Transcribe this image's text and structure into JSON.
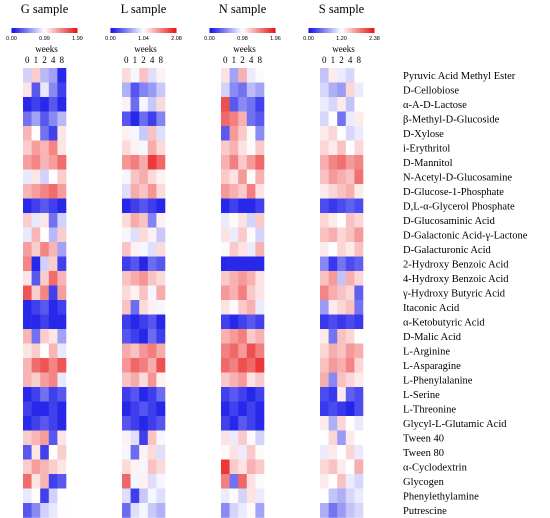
{
  "chart_data": {
    "type": "heatmap",
    "xlabel": "weeks",
    "weeks": [
      "0",
      "1",
      "2",
      "4",
      "8"
    ],
    "colors": {
      "low": "#1010e8",
      "mid": "#ffffff",
      "high": "#e81010"
    },
    "substrates": [
      "Pyruvic Acid Methyl Ester",
      "D-Cellobiose",
      "α-A-D-Lactose",
      "β-Methyl-D-Glucoside",
      "D-Xylose",
      "i-Erythritol",
      "D-Mannitol",
      "N-Acetyl-D-Glucosamine",
      "D-Glucose-1-Phosphate",
      "D,L-α-Glycerol Phosphate",
      "D-Glucosaminic Acid",
      "D-Galactonic Acid-γ-Lactone",
      "D-Galacturonic Acid",
      "2-Hydroxy Benzoic Acid",
      "4-Hydroxy Benzoic Acid",
      "γ-Hydroxy Butyric Acid",
      "Itaconic Acid",
      "α-Ketobutyric Acid",
      "D-Malic Acid",
      "L-Arginine",
      "L-Asparagine",
      "L-Phenylalanine",
      "L-Serine",
      "L-Threonine",
      "Glycyl-L-Glutamic Acid",
      "Tween 40",
      "Tween 80",
      "α-Cyclodextrin",
      "Glycogen",
      "Phenylethylamine",
      "Putrescine"
    ],
    "panels": [
      {
        "title": "G sample",
        "scale": [
          0.0,
          0.99,
          1.99
        ],
        "scale_labels": [
          "0.00",
          "0.99",
          "1.99"
        ],
        "values": [
          [
            0.8,
            1.2,
            0.7,
            0.6,
            0.1
          ],
          [
            1.1,
            0.3,
            0.9,
            0.5,
            0.2
          ],
          [
            0.1,
            0.2,
            0.1,
            0.3,
            0.1
          ],
          [
            0.4,
            0.6,
            0.3,
            0.5,
            0.7
          ],
          [
            1.3,
            1.0,
            0.4,
            0.2,
            1.1
          ],
          [
            1.2,
            1.4,
            1.3,
            1.5,
            1.1
          ],
          [
            1.4,
            1.5,
            1.3,
            1.4,
            1.6
          ],
          [
            0.9,
            1.1,
            0.8,
            1.0,
            1.2
          ],
          [
            1.3,
            1.4,
            1.5,
            1.6,
            1.4
          ],
          [
            0.1,
            0.2,
            0.3,
            0.2,
            0.1
          ],
          [
            1.2,
            0.9,
            1.1,
            0.4,
            0.8
          ],
          [
            0.9,
            1.3,
            1.0,
            0.7,
            1.2
          ],
          [
            1.4,
            1.2,
            1.5,
            1.3,
            0.6
          ],
          [
            1.5,
            0.1,
            0.8,
            1.2,
            0.2
          ],
          [
            1.1,
            0.3,
            1.2,
            1.6,
            1.3
          ],
          [
            1.7,
            1.2,
            1.5,
            0.2,
            1.4
          ],
          [
            0.1,
            0.2,
            0.3,
            0.1,
            0.2
          ],
          [
            0.1,
            0.1,
            0.2,
            0.1,
            0.1
          ],
          [
            1.3,
            0.4,
            1.2,
            1.1,
            0.6
          ],
          [
            1.1,
            1.2,
            1.0,
            1.3,
            0.9
          ],
          [
            1.3,
            1.6,
            1.7,
            1.5,
            1.7
          ],
          [
            1.3,
            1.2,
            1.4,
            1.5,
            0.9
          ],
          [
            0.1,
            0.2,
            0.4,
            0.2,
            0.3
          ],
          [
            0.2,
            0.1,
            0.1,
            0.2,
            0.1
          ],
          [
            0.1,
            0.2,
            0.3,
            0.2,
            0.1
          ],
          [
            1.2,
            1.3,
            1.4,
            0.3,
            1.1
          ],
          [
            0.3,
            1.1,
            0.2,
            1.0,
            1.2
          ],
          [
            1.2,
            1.4,
            1.3,
            1.2,
            1.1
          ],
          [
            1.6,
            1.1,
            1.3,
            0.2,
            0.3
          ],
          [
            0.9,
            1.0,
            0.2,
            0.8,
            1.0
          ],
          [
            0.3,
            0.5,
            0.8,
            0.9,
            1.0
          ]
        ]
      },
      {
        "title": "L sample",
        "scale": [
          0.0,
          1.04,
          2.08
        ],
        "scale_labels": [
          "0.00",
          "1.04",
          "2.08"
        ],
        "values": [
          [
            1.2,
            1.0,
            1.3,
            0.9,
            1.1
          ],
          [
            0.7,
            0.3,
            0.5,
            0.6,
            0.8
          ],
          [
            1.1,
            0.4,
            1.0,
            0.8,
            1.2
          ],
          [
            0.3,
            0.1,
            0.4,
            0.2,
            0.5
          ],
          [
            1.1,
            1.0,
            0.8,
            1.3,
            0.9
          ],
          [
            1.2,
            1.1,
            1.0,
            1.4,
            1.2
          ],
          [
            1.5,
            1.6,
            1.4,
            1.9,
            1.7
          ],
          [
            1.0,
            1.3,
            1.4,
            1.2,
            1.1
          ],
          [
            0.9,
            1.4,
            1.3,
            1.5,
            1.2
          ],
          [
            0.1,
            0.2,
            0.3,
            0.2,
            0.1
          ],
          [
            1.2,
            1.4,
            1.3,
            0.5,
            1.1
          ],
          [
            1.0,
            0.9,
            1.2,
            1.1,
            0.8
          ],
          [
            1.3,
            1.1,
            1.0,
            0.9,
            1.2
          ],
          [
            0.2,
            0.3,
            0.1,
            0.4,
            0.3
          ],
          [
            1.3,
            1.4,
            1.5,
            1.3,
            1.2
          ],
          [
            1.2,
            1.1,
            1.3,
            1.0,
            1.4
          ],
          [
            1.3,
            0.4,
            1.2,
            1.1,
            1.0
          ],
          [
            0.2,
            0.1,
            0.2,
            0.3,
            0.1
          ],
          [
            0.3,
            0.2,
            0.1,
            0.4,
            0.2
          ],
          [
            1.4,
            1.3,
            1.5,
            1.6,
            1.4
          ],
          [
            1.5,
            1.7,
            1.6,
            1.4,
            1.8
          ],
          [
            1.3,
            1.4,
            1.2,
            1.5,
            1.1
          ],
          [
            0.2,
            0.3,
            0.1,
            0.2,
            0.4
          ],
          [
            0.1,
            0.2,
            0.3,
            0.2,
            0.1
          ],
          [
            0.3,
            0.2,
            0.1,
            0.2,
            0.3
          ],
          [
            1.1,
            0.9,
            0.2,
            1.3,
            1.0
          ],
          [
            1.0,
            0.4,
            1.1,
            1.2,
            0.9
          ],
          [
            1.2,
            1.1,
            1.0,
            1.3,
            1.2
          ],
          [
            1.7,
            1.0,
            1.1,
            0.9,
            1.0
          ],
          [
            0.9,
            0.2,
            0.8,
            1.0,
            0.9
          ],
          [
            0.4,
            0.9,
            1.0,
            0.8,
            0.7
          ]
        ]
      },
      {
        "title": "N sample",
        "scale": [
          0.0,
          0.98,
          1.96
        ],
        "scale_labels": [
          "0.00",
          "0.98",
          "1.96"
        ],
        "values": [
          [
            1.1,
            0.6,
            1.3,
            0.9,
            1.0
          ],
          [
            0.8,
            0.5,
            0.4,
            0.7,
            0.6
          ],
          [
            1.7,
            0.3,
            0.5,
            0.4,
            0.2
          ],
          [
            1.6,
            1.5,
            1.3,
            0.4,
            0.3
          ],
          [
            0.3,
            1.4,
            1.2,
            1.0,
            0.5
          ],
          [
            1.2,
            1.3,
            1.1,
            1.0,
            1.2
          ],
          [
            1.3,
            1.5,
            1.2,
            1.4,
            1.6
          ],
          [
            1.2,
            1.1,
            1.4,
            1.0,
            1.3
          ],
          [
            1.4,
            1.3,
            1.2,
            1.5,
            1.1
          ],
          [
            0.1,
            0.2,
            0.1,
            0.1,
            0.2
          ],
          [
            0.9,
            1.0,
            1.1,
            0.8,
            1.2
          ],
          [
            1.1,
            0.9,
            1.2,
            1.0,
            0.8
          ],
          [
            1.0,
            1.2,
            1.1,
            0.9,
            1.3
          ],
          [
            0.1,
            0.1,
            0.1,
            0.1,
            0.1
          ],
          [
            1.2,
            1.3,
            1.4,
            1.3,
            1.1
          ],
          [
            1.4,
            1.3,
            1.5,
            1.2,
            1.1
          ],
          [
            1.1,
            1.0,
            1.2,
            1.3,
            0.9
          ],
          [
            0.2,
            0.1,
            0.2,
            0.3,
            0.2
          ],
          [
            1.3,
            1.4,
            1.5,
            1.2,
            1.3
          ],
          [
            1.5,
            1.6,
            1.4,
            1.7,
            1.5
          ],
          [
            1.6,
            1.5,
            1.7,
            1.6,
            1.8
          ],
          [
            1.2,
            1.3,
            1.4,
            1.1,
            1.2
          ],
          [
            0.2,
            0.3,
            0.2,
            0.1,
            0.2
          ],
          [
            0.1,
            0.2,
            0.1,
            0.2,
            0.1
          ],
          [
            0.2,
            0.1,
            0.3,
            0.2,
            0.1
          ],
          [
            1.1,
            0.9,
            1.2,
            1.0,
            0.8
          ],
          [
            1.0,
            1.1,
            0.9,
            1.2,
            1.0
          ],
          [
            1.8,
            1.2,
            1.1,
            1.3,
            1.2
          ],
          [
            1.5,
            0.4,
            1.6,
            1.1,
            1.0
          ],
          [
            0.9,
            1.0,
            0.8,
            1.1,
            0.9
          ],
          [
            0.5,
            0.8,
            0.9,
            1.0,
            0.6
          ]
        ]
      },
      {
        "title": "S sample",
        "scale": [
          0.0,
          1.2,
          2.38
        ],
        "scale_labels": [
          "0.00",
          "1.20",
          "2.38"
        ],
        "values": [
          [
            0.9,
            1.3,
            1.1,
            1.0,
            1.2
          ],
          [
            1.0,
            0.8,
            0.7,
            1.4,
            1.1
          ],
          [
            1.1,
            1.0,
            1.3,
            0.9,
            1.2
          ],
          [
            1.0,
            1.2,
            0.5,
            1.1,
            1.3
          ],
          [
            1.3,
            1.4,
            1.2,
            1.0,
            1.1
          ],
          [
            1.4,
            1.3,
            1.5,
            1.2,
            1.4
          ],
          [
            1.6,
            1.8,
            1.9,
            1.7,
            1.8
          ],
          [
            1.5,
            1.7,
            1.6,
            1.5,
            1.9
          ],
          [
            1.3,
            1.4,
            1.5,
            1.6,
            1.3
          ],
          [
            0.3,
            0.2,
            0.3,
            0.4,
            0.3
          ],
          [
            1.4,
            1.3,
            1.2,
            1.5,
            1.4
          ],
          [
            1.5,
            1.6,
            1.4,
            1.5,
            1.7
          ],
          [
            1.3,
            1.2,
            1.4,
            1.3,
            1.5
          ],
          [
            0.6,
            0.2,
            0.5,
            0.3,
            0.4
          ],
          [
            1.5,
            1.7,
            0.9,
            1.6,
            1.4
          ],
          [
            1.8,
            1.6,
            1.5,
            1.4,
            0.4
          ],
          [
            0.7,
            1.3,
            1.4,
            1.5,
            0.5
          ],
          [
            0.2,
            0.3,
            0.2,
            0.3,
            0.2
          ],
          [
            1.3,
            0.5,
            1.5,
            1.4,
            1.2
          ],
          [
            1.4,
            1.6,
            1.5,
            1.7,
            1.6
          ],
          [
            1.5,
            1.7,
            1.6,
            1.8,
            1.4
          ],
          [
            1.6,
            0.6,
            1.5,
            1.4,
            1.3
          ],
          [
            0.3,
            0.2,
            1.3,
            0.4,
            0.3
          ],
          [
            0.2,
            0.3,
            0.2,
            0.1,
            0.3
          ],
          [
            1.3,
            0.8,
            1.4,
            1.2,
            1.1
          ],
          [
            1.2,
            1.4,
            0.7,
            1.3,
            1.2
          ],
          [
            1.1,
            1.3,
            1.2,
            1.4,
            1.1
          ],
          [
            1.4,
            1.5,
            1.3,
            1.2,
            1.6
          ],
          [
            1.3,
            1.2,
            1.5,
            1.1,
            1.0
          ],
          [
            1.2,
            0.9,
            0.8,
            1.0,
            1.1
          ],
          [
            0.8,
            0.5,
            0.7,
            0.9,
            1.0
          ]
        ]
      }
    ]
  }
}
